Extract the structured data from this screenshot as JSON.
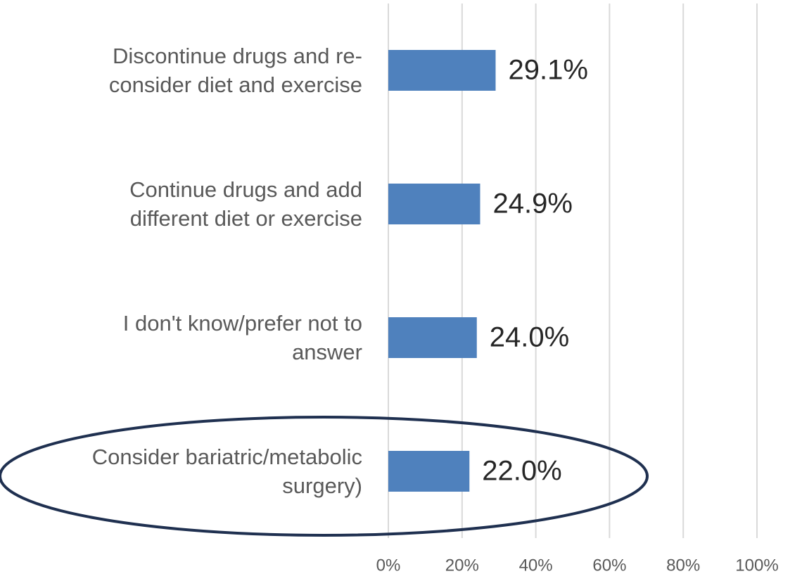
{
  "chart_data": {
    "type": "bar",
    "orientation": "horizontal",
    "categories": [
      "Discontinue drugs and re-\nconsider diet and exercise",
      "Continue drugs and add\ndifferent diet or exercise",
      "I don't know/prefer not to\nanswer",
      "Consider bariatric/metabolic\nsurgery)"
    ],
    "values": [
      29.1,
      24.9,
      24.0,
      22.0
    ],
    "value_labels": [
      "29.1%",
      "24.9%",
      "24.0%",
      "22.0%"
    ],
    "color": "#4f81bd",
    "xlim": [
      0,
      100
    ],
    "xticks": [
      {
        "value": 0,
        "label": "0%"
      },
      {
        "value": 20,
        "label": "20%"
      },
      {
        "value": 40,
        "label": "40%"
      },
      {
        "value": 60,
        "label": "60%"
      },
      {
        "value": 80,
        "label": "80%"
      },
      {
        "value": 100,
        "label": "100%"
      }
    ],
    "grid": true
  }
}
